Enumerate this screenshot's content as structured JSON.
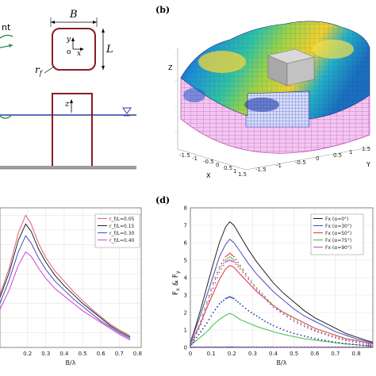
{
  "panel_a": {
    "label_fragment": "nt",
    "dim_width": "B",
    "dim_length": "L",
    "radius_label": "r",
    "radius_sub": "f",
    "axis_y": "y",
    "axis_o": "o",
    "axis_x": "x",
    "axis_z": "z"
  },
  "panel_b": {
    "label": "(b)",
    "zlabel": "Z",
    "xlabel": "X",
    "ylabel": "Y",
    "x_ticks": [
      "-1.5",
      "-1",
      "-0.5",
      "0",
      "0.5",
      "1",
      "1.5"
    ],
    "y_ticks": [
      "-1.5",
      "-1",
      "-0.5",
      "0",
      "0.5",
      "1",
      "1.5"
    ]
  },
  "chart_data": [
    {
      "type": "line",
      "panel": "c",
      "xlabel": "B/λ",
      "x_ticks": [
        "0.2",
        "0.3",
        "0.4",
        "0.5",
        "0.6",
        "0.7",
        "0.8"
      ],
      "xlim": [
        0.05,
        0.82
      ],
      "ylim": [
        0,
        9.5
      ],
      "grid": true,
      "legend": "top-right",
      "x": [
        0.05,
        0.1,
        0.15,
        0.19,
        0.22,
        0.26,
        0.3,
        0.35,
        0.4,
        0.45,
        0.5,
        0.55,
        0.6,
        0.65,
        0.7,
        0.76
      ],
      "series": [
        {
          "name": "r_f/L=0.05",
          "color": "#e06070",
          "values": [
            3.6,
            5.4,
            7.8,
            9.0,
            8.4,
            7.1,
            6.1,
            5.2,
            4.5,
            3.8,
            3.2,
            2.6,
            2.1,
            1.6,
            1.2,
            0.8
          ]
        },
        {
          "name": "r_f/L=0.15",
          "color": "#222222",
          "values": [
            3.4,
            5.1,
            7.3,
            8.4,
            7.9,
            6.7,
            5.8,
            4.9,
            4.2,
            3.6,
            3.0,
            2.5,
            2.0,
            1.5,
            1.1,
            0.7
          ]
        },
        {
          "name": "r_f/L=0.30",
          "color": "#4a4ac0",
          "values": [
            3.0,
            4.6,
            6.5,
            7.6,
            7.1,
            6.1,
            5.3,
            4.5,
            3.9,
            3.3,
            2.8,
            2.3,
            1.8,
            1.4,
            1.0,
            0.6
          ]
        },
        {
          "name": "r_f/L=0.40",
          "color": "#d040d0",
          "values": [
            2.6,
            3.9,
            5.6,
            6.5,
            6.2,
            5.4,
            4.7,
            4.0,
            3.5,
            3.0,
            2.5,
            2.1,
            1.7,
            1.3,
            0.9,
            0.5
          ]
        }
      ]
    },
    {
      "type": "line",
      "panel": "d",
      "label": "(d)",
      "ylabel_parts": [
        "F",
        "x",
        "&",
        "F",
        "y"
      ],
      "xlabel": "B/λ",
      "x_ticks": [
        "0",
        "0.1",
        "0.2",
        "0.3",
        "0.4",
        "0.5",
        "0.6",
        "0.7",
        "0.8"
      ],
      "y_ticks": [
        "0",
        "1",
        "2",
        "3",
        "4",
        "5",
        "6",
        "7",
        "8"
      ],
      "xlim": [
        0,
        0.88
      ],
      "ylim": [
        0,
        8
      ],
      "grid": true,
      "legend": "top-right",
      "x": [
        0,
        0.02,
        0.05,
        0.08,
        0.11,
        0.14,
        0.17,
        0.19,
        0.21,
        0.24,
        0.28,
        0.32,
        0.36,
        0.4,
        0.45,
        0.5,
        0.55,
        0.6,
        0.65,
        0.7,
        0.75,
        0.8,
        0.85,
        0.88
      ],
      "series": [
        {
          "name": "Fx (α=0°)",
          "color": "#222222",
          "style": "solid",
          "values": [
            0.3,
            1.0,
            2.2,
            3.5,
            4.8,
            6.0,
            6.9,
            7.2,
            7.0,
            6.4,
            5.6,
            4.9,
            4.3,
            3.7,
            3.1,
            2.6,
            2.1,
            1.7,
            1.4,
            1.1,
            0.8,
            0.6,
            0.4,
            0.3
          ]
        },
        {
          "name": "Fx (α=30°)",
          "color": "#4a4ac0",
          "style": "solid",
          "values": [
            0.3,
            0.9,
            1.9,
            3.0,
            4.1,
            5.2,
            5.9,
            6.2,
            6.0,
            5.5,
            4.8,
            4.2,
            3.7,
            3.2,
            2.7,
            2.2,
            1.8,
            1.5,
            1.2,
            0.9,
            0.7,
            0.5,
            0.35,
            0.25
          ]
        },
        {
          "name": "Fx (α=50°)",
          "color": "#e03040",
          "style": "solid",
          "values": [
            0.2,
            0.7,
            1.4,
            2.3,
            3.1,
            3.9,
            4.5,
            4.7,
            4.6,
            4.2,
            3.7,
            3.2,
            2.8,
            2.4,
            2.0,
            1.7,
            1.4,
            1.1,
            0.9,
            0.7,
            0.5,
            0.4,
            0.28,
            0.2
          ]
        },
        {
          "name": "Fx (α=75°)",
          "color": "#40c040",
          "style": "solid",
          "values": [
            0.1,
            0.3,
            0.6,
            0.9,
            1.3,
            1.6,
            1.85,
            1.95,
            1.85,
            1.6,
            1.4,
            1.2,
            1.05,
            0.9,
            0.75,
            0.62,
            0.5,
            0.42,
            0.34,
            0.27,
            0.2,
            0.15,
            0.1,
            0.08
          ]
        },
        {
          "name": "Fx (α=90°)",
          "color": "#d040d0",
          "style": "solid",
          "values": [
            0.02,
            0.02,
            0.02,
            0.02,
            0.02,
            0.02,
            0.02,
            0.02,
            0.02,
            0.02,
            0.02,
            0.02,
            0.02,
            0.02,
            0.02,
            0.02,
            0.02,
            0.02,
            0.02,
            0.02,
            0.02,
            0.02,
            0.02,
            0.02
          ]
        },
        {
          "name": "",
          "color": "#4a4ac0",
          "style": "dots",
          "values": [
            0.0,
            0.02,
            0.02,
            0.02,
            0.02,
            0.02,
            0.02,
            0.02,
            0.02,
            0.02,
            0.02,
            0.02,
            0.02,
            0.02,
            0.02,
            0.02,
            0.02,
            0.02,
            0.02,
            0.02,
            0.02,
            0.02,
            0.02,
            0.02
          ]
        },
        {
          "name": "",
          "color": "#e03040",
          "style": "dots",
          "values": [
            0.2,
            0.6,
            1.5,
            2.6,
            3.7,
            4.6,
            5.2,
            5.4,
            5.2,
            4.7,
            4.0,
            3.4,
            2.9,
            2.4,
            1.9,
            1.5,
            1.2,
            0.95,
            0.75,
            0.55,
            0.4,
            0.3,
            0.2,
            0.15
          ]
        },
        {
          "name": "",
          "color": "#40c040",
          "style": "dots",
          "values": [
            0.2,
            0.6,
            1.4,
            2.5,
            3.6,
            4.5,
            5.0,
            5.2,
            5.0,
            4.6,
            4.0,
            3.4,
            2.9,
            2.4,
            2.0,
            1.6,
            1.3,
            1.0,
            0.8,
            0.6,
            0.45,
            0.33,
            0.22,
            0.17
          ]
        },
        {
          "name": "",
          "color": "#d040d0",
          "style": "dots",
          "values": [
            0.2,
            0.55,
            1.3,
            2.3,
            3.4,
            4.3,
            4.9,
            5.0,
            4.9,
            4.5,
            3.9,
            3.3,
            2.8,
            2.3,
            1.9,
            1.5,
            1.2,
            0.95,
            0.75,
            0.55,
            0.4,
            0.3,
            0.2,
            0.15
          ]
        },
        {
          "name": "",
          "color": "#2233aa",
          "style": "dots",
          "values": [
            0.1,
            0.4,
            0.9,
            1.4,
            2.0,
            2.5,
            2.8,
            2.9,
            2.8,
            2.5,
            2.1,
            1.8,
            1.5,
            1.25,
            1.0,
            0.8,
            0.65,
            0.5,
            0.4,
            0.3,
            0.22,
            0.16,
            0.11,
            0.08
          ]
        }
      ]
    }
  ]
}
